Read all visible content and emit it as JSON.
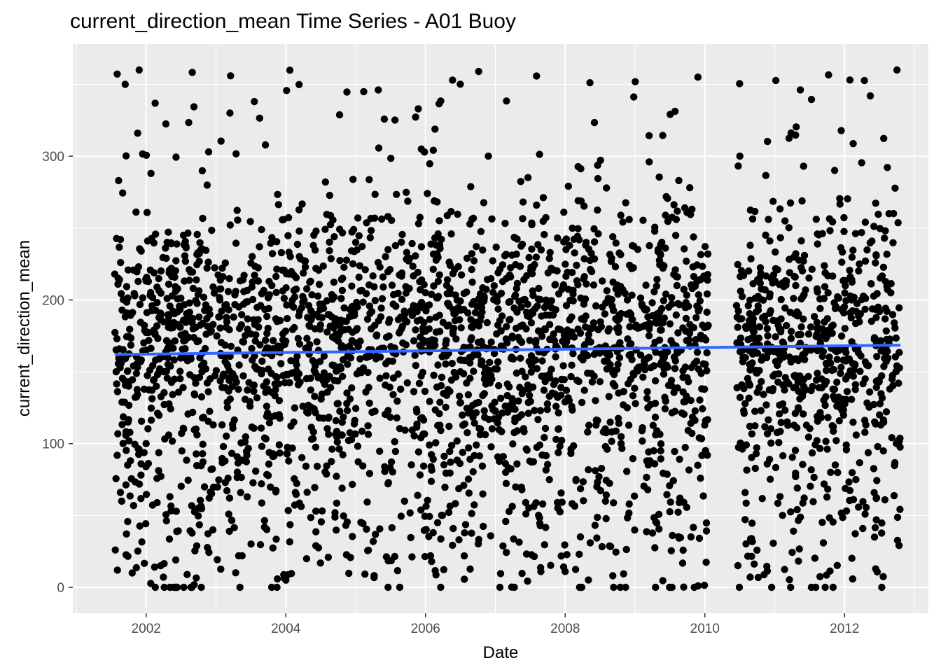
{
  "chart_data": {
    "type": "scatter",
    "title": "current_direction_mean Time Series - A01 Buoy",
    "xlabel": "Date",
    "ylabel": "current_direction_mean",
    "x_ticks": [
      "2002",
      "2004",
      "2006",
      "2008",
      "2010",
      "2012"
    ],
    "y_ticks": [
      "0",
      "100",
      "200",
      "300"
    ],
    "xlim": [
      2000.95,
      2013.2
    ],
    "ylim": [
      -18,
      378
    ],
    "x_range_data": [
      2001.55,
      2012.8
    ],
    "data_gap": [
      2010.05,
      2010.45
    ],
    "y_range": [
      0,
      360
    ],
    "approx_point_count": 3300,
    "background": "#ebebeb",
    "grid": true,
    "point_color": "#000000",
    "trend_line": {
      "method": "linear",
      "color": "#3366ff",
      "x": [
        2001.55,
        2012.8
      ],
      "y": [
        162,
        168.5
      ]
    },
    "series": [
      {
        "points_sample": [
          [
            2001.6,
            215
          ],
          [
            2001.65,
            60
          ],
          [
            2001.7,
            350
          ],
          [
            2001.75,
            140
          ],
          [
            2001.8,
            10
          ],
          [
            2001.9,
            360
          ],
          [
            2002.0,
            100
          ],
          [
            2002.3,
            240
          ],
          [
            2002.8,
            150
          ],
          [
            2003.2,
            330
          ],
          [
            2003.8,
            210
          ],
          [
            2004.0,
            5
          ],
          [
            2004.4,
            190
          ],
          [
            2005.0,
            240
          ],
          [
            2005.3,
            175
          ],
          [
            2005.7,
            60
          ],
          [
            2006.0,
            205
          ],
          [
            2006.5,
            150
          ],
          [
            2006.9,
            300
          ],
          [
            2007.4,
            200
          ],
          [
            2007.9,
            110
          ],
          [
            2008.3,
            240
          ],
          [
            2008.8,
            100
          ],
          [
            2009.2,
            160
          ],
          [
            2009.6,
            210
          ],
          [
            2009.9,
            355
          ],
          [
            2010.5,
            300
          ],
          [
            2010.9,
            175
          ],
          [
            2011.3,
            210
          ],
          [
            2011.8,
            80
          ],
          [
            2012.1,
            200
          ],
          [
            2012.5,
            120
          ],
          [
            2012.75,
            360
          ]
        ]
      }
    ]
  }
}
